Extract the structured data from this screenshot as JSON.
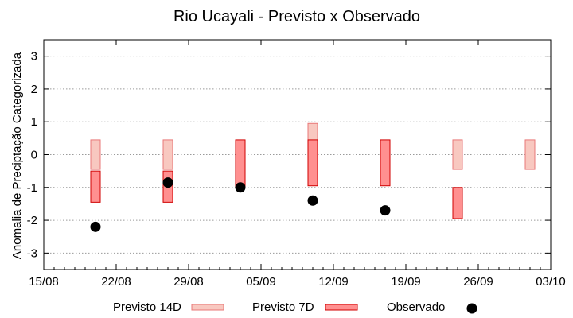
{
  "chart_data": {
    "type": "bar",
    "title": "Rio Ucayali - Previsto x Observado",
    "ylabel": "Anomalia de Preciptação Categorizada",
    "xlabel": "",
    "xlim": [
      "2014-08-15",
      "2014-10-03"
    ],
    "ylim": [
      -3.5,
      3.5
    ],
    "yticks": [
      -3,
      -2,
      -1,
      0,
      1,
      2,
      3
    ],
    "xtick_labels": [
      "15/08",
      "22/08",
      "29/08",
      "05/09",
      "12/09",
      "19/09",
      "26/09",
      "03/10"
    ],
    "xtick_dates": [
      "2014-08-15",
      "2014-08-22",
      "2014-08-29",
      "2014-09-05",
      "2014-09-12",
      "2014-09-19",
      "2014-09-26",
      "2014-10-03"
    ],
    "grid": "y dotted",
    "legend_position": "bottom",
    "series": [
      {
        "name": "Previsto 14D",
        "kind": "range-bar",
        "color": "#f8c8c0",
        "edge": "#e87878",
        "points": [
          {
            "x": "2014-08-20",
            "low": -0.45,
            "high": 0.45
          },
          {
            "x": "2014-08-27",
            "low": -0.45,
            "high": 0.45
          },
          {
            "x": "2014-09-10",
            "low": -0.45,
            "high": 0.95
          },
          {
            "x": "2014-09-24",
            "low": -0.45,
            "high": 0.45
          },
          {
            "x": "2014-10-01",
            "low": -0.45,
            "high": 0.45
          }
        ]
      },
      {
        "name": "Previsto 7D",
        "kind": "range-bar",
        "color": "#ff9090",
        "edge": "#d00000",
        "points": [
          {
            "x": "2014-08-20",
            "low": -1.45,
            "high": -0.5
          },
          {
            "x": "2014-08-27",
            "low": -1.45,
            "high": -0.5
          },
          {
            "x": "2014-09-03",
            "low": -1.0,
            "high": 0.45
          },
          {
            "x": "2014-09-10",
            "low": -0.95,
            "high": 0.45
          },
          {
            "x": "2014-09-17",
            "low": -0.95,
            "high": 0.45
          },
          {
            "x": "2014-09-24",
            "low": -1.95,
            "high": -1.0
          }
        ]
      },
      {
        "name": "Observado",
        "kind": "scatter",
        "color": "#000000",
        "points": [
          {
            "x": "2014-08-20",
            "y": -2.2
          },
          {
            "x": "2014-08-27",
            "y": -0.85
          },
          {
            "x": "2014-09-03",
            "y": -1.0
          },
          {
            "x": "2014-09-10",
            "y": -1.4
          },
          {
            "x": "2014-09-17",
            "y": -1.7
          }
        ]
      }
    ]
  }
}
